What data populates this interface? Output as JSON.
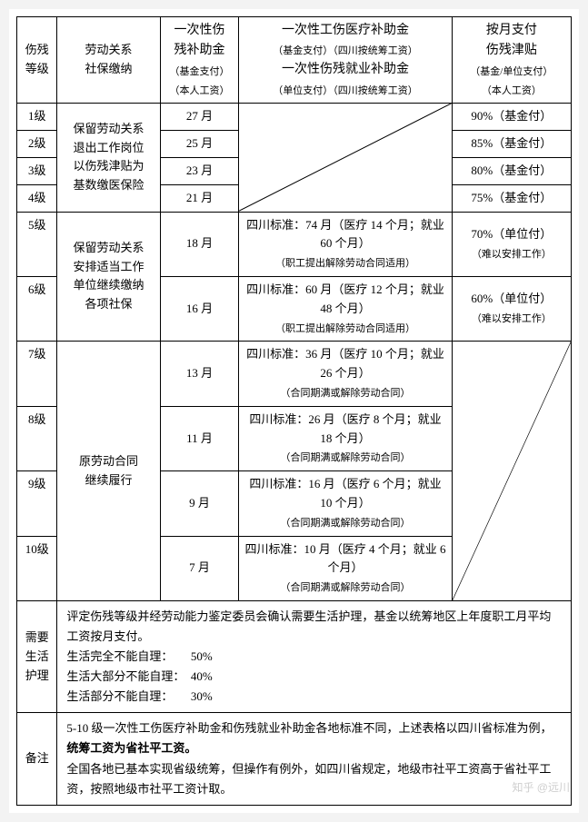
{
  "header": {
    "col0": "伤残\n等级",
    "col1": "劳动关系\n社保缴纳",
    "col2_main": "一次性伤\n残补助金",
    "col2_sub": "（基金支付）\n（本人工资）",
    "col3_line1": "一次性工伤医疗补助金",
    "col3_sub1": "（基金支付）（四川按统筹工资）",
    "col3_line2": "一次性伤残就业补助金",
    "col3_sub2": "（单位支付）（四川按统筹工资）",
    "col4_main": "按月支付\n伤残津贴",
    "col4_sub": "（基金/单位支付）\n（本人工资）"
  },
  "group1": {
    "relation": "保留劳动关系\n退出工作岗位\n以伤残津贴为\n基数缴医保险",
    "rows": [
      {
        "level": "1级",
        "months": "27 月",
        "allow": "90%（基金付）"
      },
      {
        "level": "2级",
        "months": "25 月",
        "allow": "85%（基金付）"
      },
      {
        "level": "3级",
        "months": "23 月",
        "allow": "80%（基金付）"
      },
      {
        "level": "4级",
        "months": "21 月",
        "allow": "75%（基金付）"
      }
    ]
  },
  "group2": {
    "relation": "保留劳动关系\n安排适当工作\n单位继续缴纳\n各项社保",
    "rows": [
      {
        "level": "5级",
        "months": "18 月",
        "c3_main": "四川标准：74 月（医疗 14 个月；就业 60 个月）",
        "c3_sub": "（职工提出解除劳动合同适用）",
        "allow_main": "70%（单位付）",
        "allow_sub": "（难以安排工作）"
      },
      {
        "level": "6级",
        "months": "16 月",
        "c3_main": "四川标准：60 月（医疗 12 个月；就业 48 个月）",
        "c3_sub": "（职工提出解除劳动合同适用）",
        "allow_main": "60%（单位付）",
        "allow_sub": "（难以安排工作）"
      }
    ]
  },
  "group3": {
    "relation": "原劳动合同\n继续履行",
    "rows": [
      {
        "level": "7级",
        "months": "13 月",
        "c3_main": "四川标准：36 月（医疗 10 个月；就业 26 个月）",
        "c3_sub": "（合同期满或解除劳动合同）"
      },
      {
        "level": "8级",
        "months": "11 月",
        "c3_main": "四川标准：26 月（医疗 8 个月；就业 18 个月）",
        "c3_sub": "（合同期满或解除劳动合同）"
      },
      {
        "level": "9级",
        "months": "9 月",
        "c3_main": "四川标准：16 月（医疗 6 个月；就业 10 个月）",
        "c3_sub": "（合同期满或解除劳动合同）"
      },
      {
        "level": "10级",
        "months": "7 月",
        "c3_main": "四川标准：10 月（医疗 4 个月；就业 6 个月）",
        "c3_sub": "（合同期满或解除劳动合同）"
      }
    ]
  },
  "care": {
    "label": "需要\n生活\n护理",
    "intro": "评定伤残等级并经劳动能力鉴定委员会确认需要生活护理，基金以统筹地区上年度职工月平均工资按月支付。",
    "l1": "生活完全不能自理：　　50%",
    "l2": "生活大部分不能自理：　40%",
    "l3": "生活部分不能自理：　　30%"
  },
  "remark": {
    "label": "备注",
    "p1a": "5-10 级一次性工伤医疗补助金和伤残就业补助金各地标准不同，上述表格以四川省标准为例，",
    "p1b": "统筹工资为省社平工资。",
    "p2": "全国各地已基本实现省级统筹，但操作有例外，如四川省规定，地级市社平工资高于省社平工资，按照地级市社平工资计取。"
  },
  "watermark": "知乎 @远川"
}
